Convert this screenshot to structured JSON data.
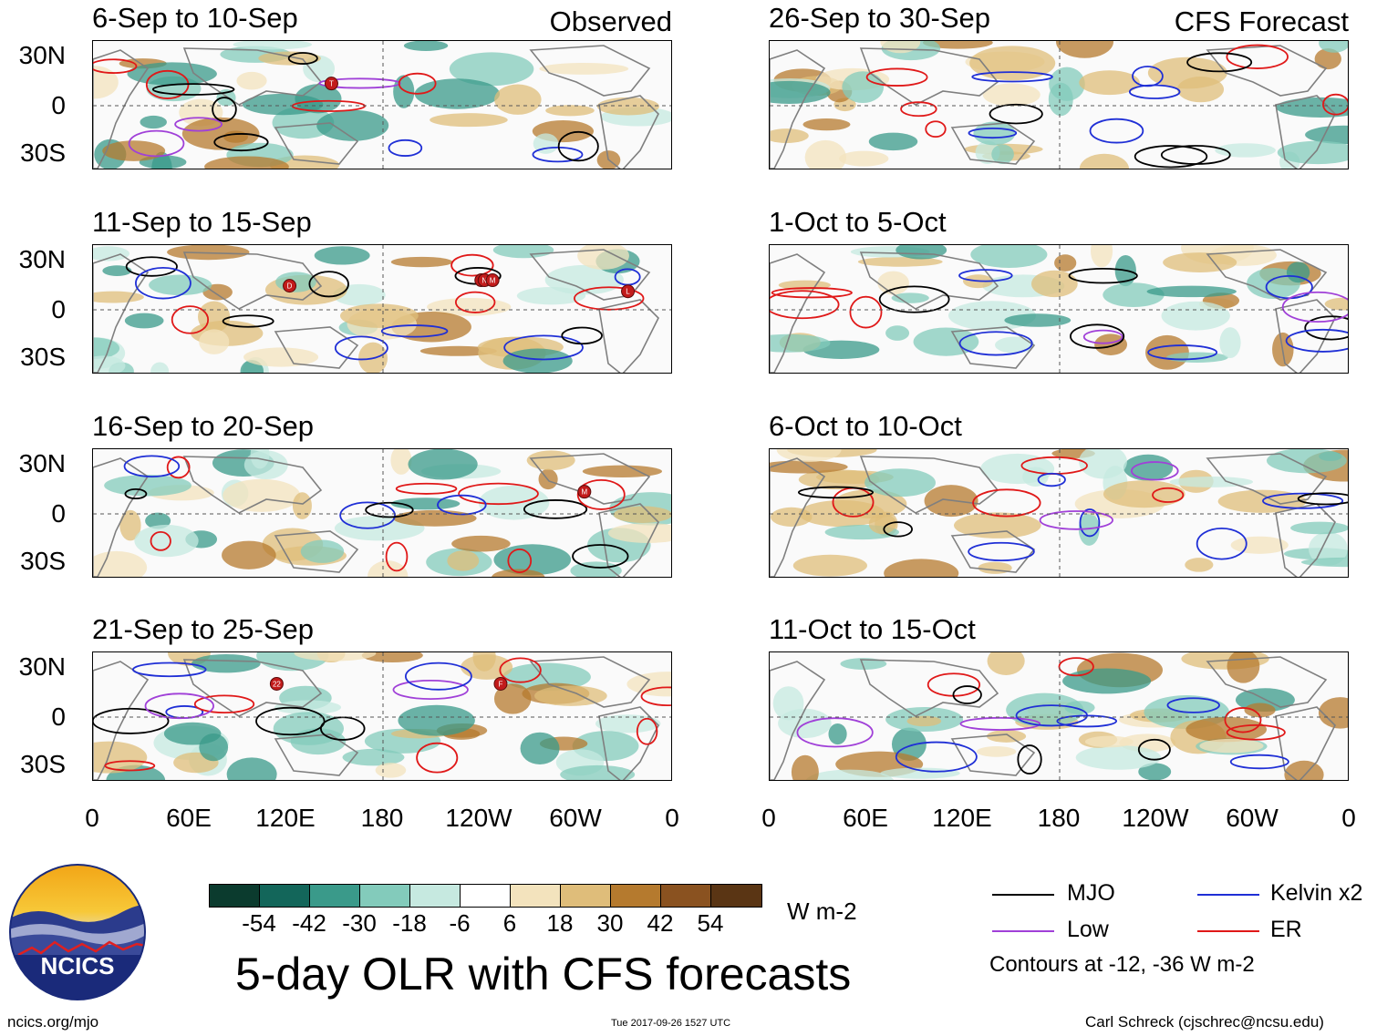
{
  "panels_observed": [
    {
      "title": "6-Sep to 10-Sep",
      "label": "Observed"
    },
    {
      "title": "11-Sep to 15-Sep",
      "label": ""
    },
    {
      "title": "16-Sep to 20-Sep",
      "label": ""
    },
    {
      "title": "21-Sep to 25-Sep",
      "label": ""
    }
  ],
  "panels_forecast": [
    {
      "title": "26-Sep to 30-Sep",
      "label": "CFS Forecast"
    },
    {
      "title": "1-Oct to 5-Oct",
      "label": ""
    },
    {
      "title": "6-Oct to 10-Oct",
      "label": ""
    },
    {
      "title": "11-Oct to 15-Oct",
      "label": ""
    }
  ],
  "lat_labels": [
    "30N",
    "0",
    "30S"
  ],
  "lon_labels": [
    "0",
    "60E",
    "120E",
    "180",
    "120W",
    "60W",
    "0"
  ],
  "colorbar": {
    "colors": [
      "#0b3b2e",
      "#13665a",
      "#3a9a8a",
      "#83cbbb",
      "#c6e9e0",
      "#ffffff",
      "#f3e3bd",
      "#dfbd7a",
      "#b57a2e",
      "#8a5220",
      "#5a3514"
    ],
    "ticks": [
      "-54",
      "-42",
      "-30",
      "-18",
      "-6",
      "6",
      "18",
      "30",
      "42",
      "54"
    ],
    "units": "W m-2"
  },
  "legend": {
    "mjo": {
      "label": "MJO",
      "color": "#000000"
    },
    "kelvin": {
      "label": "Kelvin x2",
      "color": "#1f2fd6"
    },
    "low": {
      "label": "Low",
      "color": "#a040d8"
    },
    "er": {
      "label": "ER",
      "color": "#e01818"
    },
    "note": "Contours at -12, -36 W m-2"
  },
  "main_title": "5-day OLR with CFS forecasts",
  "logo_text": "NCICS",
  "footer": {
    "url": "ncics.org/mjo",
    "timestamp": "Tue 2017-09-26 1527 UTC",
    "credit": "Carl Schreck (cjschrec@ncsu.edu)"
  },
  "storm_markers": [
    {
      "panel": 0,
      "lon": 148,
      "lat": 12,
      "label": "T"
    },
    {
      "panel": 1,
      "lon": 122,
      "lat": 13,
      "label": "D"
    },
    {
      "panel": 1,
      "lon": 241,
      "lat": 16,
      "label": "O"
    },
    {
      "panel": 1,
      "lon": 243,
      "lat": 16,
      "label": "N"
    },
    {
      "panel": 1,
      "lon": 248,
      "lat": 16,
      "label": "M"
    },
    {
      "panel": 1,
      "lon": 332,
      "lat": 10,
      "label": "L"
    },
    {
      "panel": 2,
      "lon": 305,
      "lat": 12,
      "label": "M"
    },
    {
      "panel": 3,
      "lon": 114,
      "lat": 18,
      "label": "22"
    },
    {
      "panel": 3,
      "lon": 253,
      "lat": 18,
      "label": "F"
    }
  ]
}
